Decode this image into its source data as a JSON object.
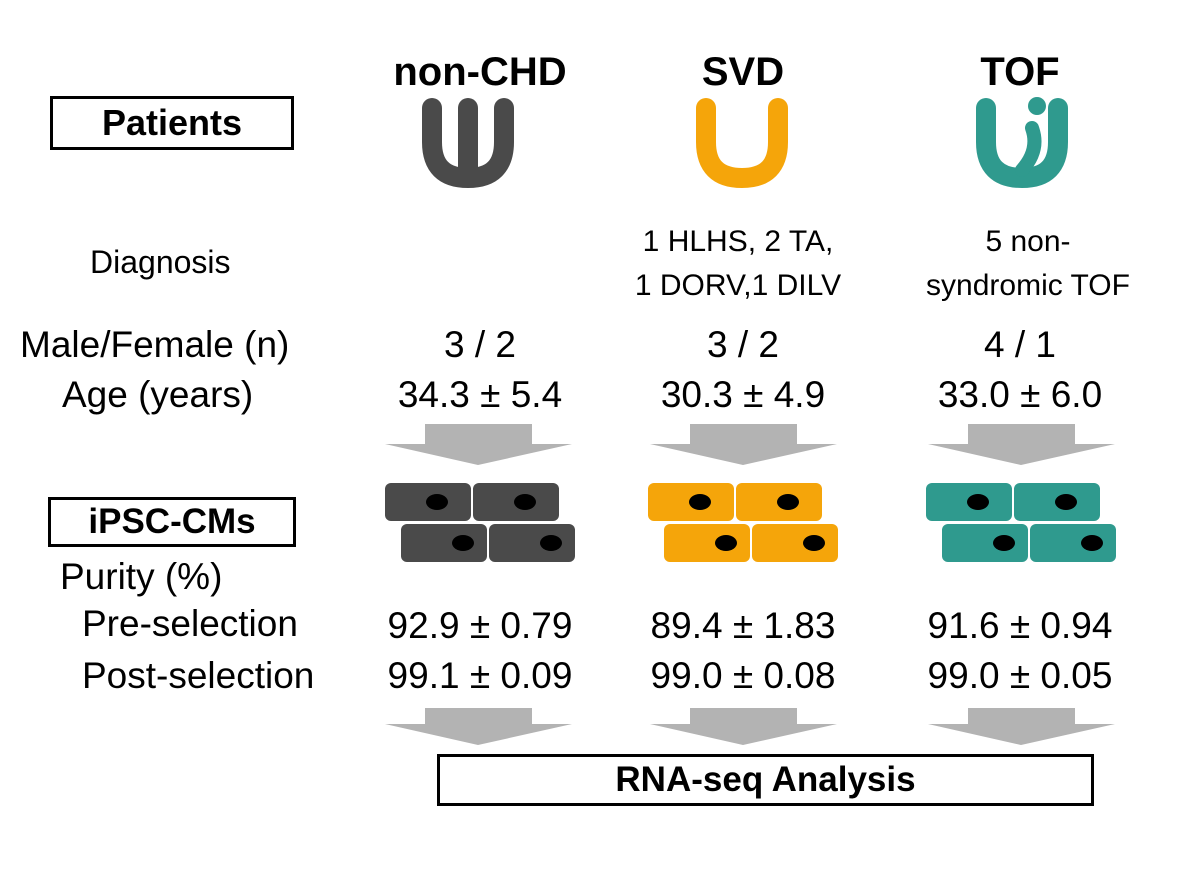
{
  "labels": {
    "patients": "Patients",
    "diagnosis": "Diagnosis",
    "male_female": "Male/Female (n)",
    "age": "Age (years)",
    "ipsc": "iPSC-CMs",
    "purity": "Purity (%)",
    "pre": "Pre-selection",
    "post": "Post-selection",
    "rnaseq": "RNA-seq Analysis"
  },
  "groups": [
    {
      "name": "non-CHD",
      "color": "#4a4a4a",
      "diagnosis_line1": "",
      "diagnosis_line2": "",
      "male_female": "3 / 2",
      "age": "34.3 ± 5.4",
      "pre": "92.9 ± 0.79",
      "post": "99.1 ± 0.09"
    },
    {
      "name": "SVD",
      "color": "#f5a50a",
      "diagnosis_line1": "1 HLHS, 2 TA,",
      "diagnosis_line2": "1 DORV,1 DILV",
      "male_female": "3 / 2",
      "age": "30.3 ± 4.9",
      "pre": "89.4 ± 1.83",
      "post": "99.0 ± 0.08"
    },
    {
      "name": "TOF",
      "color": "#2f9a8e",
      "diagnosis_line1": "5 non-",
      "diagnosis_line2": "syndromic TOF",
      "male_female": "4 / 1",
      "age": "33.0 ± 6.0",
      "pre": "91.6 ± 0.94",
      "post": "99.0 ± 0.05"
    }
  ],
  "icons": {
    "non_chd": "normal-heart-icon",
    "svd": "single-ventricle-heart-icon",
    "tof": "tof-heart-icon",
    "cells": "cardiomyocyte-cells-icon",
    "arrow": "down-arrow-icon"
  },
  "colors": {
    "arrow": "#b3b3b3",
    "nucleus": "#000000"
  }
}
